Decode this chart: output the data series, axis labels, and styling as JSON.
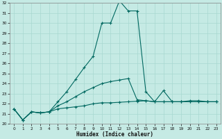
{
  "xlabel": "Humidex (Indice chaleur)",
  "x": [
    0,
    1,
    2,
    3,
    4,
    5,
    6,
    7,
    8,
    9,
    10,
    11,
    12,
    13,
    14,
    15,
    16,
    17,
    18,
    19,
    20,
    21,
    22,
    23
  ],
  "line_flat": [
    21.5,
    20.4,
    21.2,
    21.1,
    21.2,
    21.5,
    21.6,
    21.7,
    21.8,
    22.0,
    22.1,
    22.1,
    22.15,
    22.2,
    22.25,
    22.3,
    22.2,
    22.2,
    22.2,
    22.2,
    22.2,
    22.2,
    22.2,
    22.2
  ],
  "line_mid": [
    21.5,
    20.4,
    21.2,
    21.1,
    21.2,
    21.8,
    22.2,
    22.7,
    23.2,
    23.6,
    24.0,
    24.2,
    24.35,
    24.5,
    22.4,
    22.3,
    22.2,
    22.2,
    22.2,
    22.2,
    22.3,
    22.3,
    22.2,
    22.2
  ],
  "line_high": [
    21.5,
    20.4,
    21.2,
    21.1,
    21.2,
    22.2,
    23.2,
    24.4,
    25.6,
    26.7,
    30.0,
    30.0,
    32.2,
    31.2,
    31.2,
    23.2,
    22.2,
    23.3,
    22.2,
    22.2,
    22.2,
    22.2,
    22.2,
    22.2
  ],
  "bg_color": "#c5eae4",
  "grid_color": "#a8d8d0",
  "line_color": "#006860",
  "ylim_min": 20,
  "ylim_max": 32,
  "yticks": [
    20,
    21,
    22,
    23,
    24,
    25,
    26,
    27,
    28,
    29,
    30,
    31,
    32
  ],
  "xticks": [
    0,
    1,
    2,
    3,
    4,
    5,
    6,
    7,
    8,
    9,
    10,
    11,
    12,
    13,
    14,
    15,
    16,
    17,
    18,
    19,
    20,
    21,
    22,
    23
  ]
}
